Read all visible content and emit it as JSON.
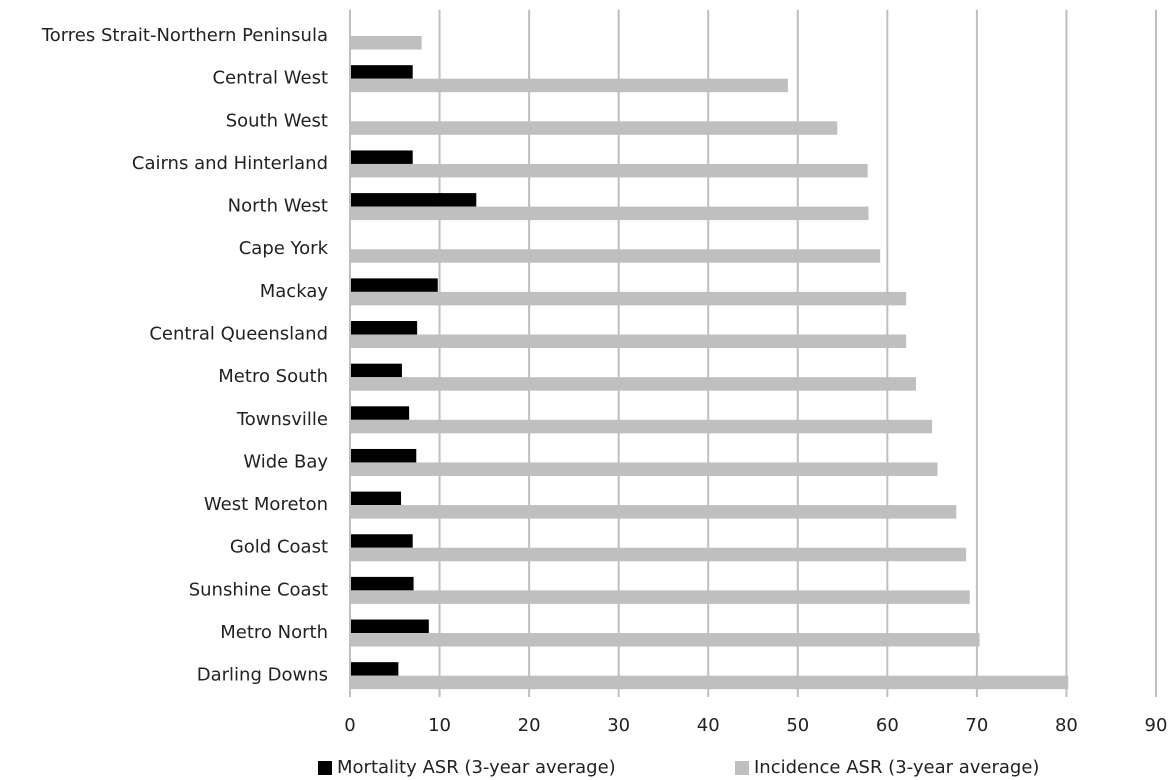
{
  "chart_data": {
    "type": "bar",
    "orientation": "horizontal",
    "categories": [
      "Torres Strait-Northern Peninsula",
      "Central West",
      "South West",
      "Cairns and Hinterland",
      "North West",
      "Cape York",
      "Mackay",
      "Central Queensland",
      "Metro South",
      "Townsville",
      "Wide Bay",
      "West Moreton",
      "Gold Coast",
      "Sunshine Coast",
      "Metro North",
      "Darling Downs"
    ],
    "series": [
      {
        "name": "Mortality ASR (3-year average)",
        "color": "#000000",
        "values": [
          null,
          7.0,
          null,
          7.0,
          14.1,
          null,
          9.8,
          7.5,
          5.8,
          6.6,
          7.4,
          5.7,
          7.0,
          7.1,
          8.8,
          5.4
        ]
      },
      {
        "name": "Incidence ASR (3-year average)",
        "color": "#bfbfbf",
        "values": [
          8.0,
          48.9,
          54.4,
          57.8,
          57.9,
          59.2,
          62.1,
          62.1,
          63.2,
          65.0,
          65.6,
          67.7,
          68.8,
          69.2,
          70.3,
          80.2
        ]
      }
    ],
    "xlim": [
      0,
      90
    ],
    "xticks": [
      0,
      10,
      20,
      30,
      40,
      50,
      60,
      70,
      80,
      90
    ],
    "grid": true,
    "legend": "bottom"
  }
}
